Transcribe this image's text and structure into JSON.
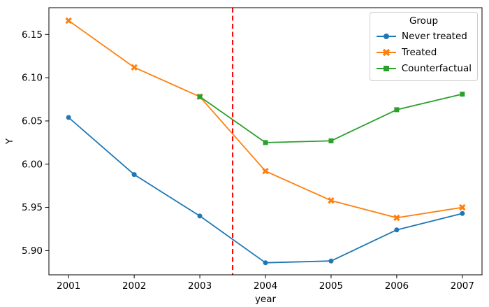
{
  "chart_data": {
    "type": "line",
    "xlabel": "year",
    "ylabel": "Y",
    "x": [
      2001,
      2002,
      2003,
      2004,
      2005,
      2006,
      2007
    ],
    "series": [
      {
        "name": "Never treated",
        "color": "#1f77b4",
        "marker": "circle",
        "values": [
          6.054,
          5.988,
          5.94,
          5.886,
          5.888,
          5.924,
          5.943
        ]
      },
      {
        "name": "Treated",
        "color": "#ff7f0e",
        "marker": "x",
        "values": [
          6.166,
          6.112,
          6.078,
          5.992,
          5.958,
          5.938,
          5.95
        ]
      },
      {
        "name": "Counterfactual",
        "color": "#2ca02c",
        "marker": "square",
        "values": [
          null,
          null,
          6.078,
          6.025,
          6.027,
          6.063,
          6.081
        ]
      }
    ],
    "vline": {
      "x": 2003.5,
      "color": "#ff0000",
      "style": "dashed"
    },
    "legend": {
      "title": "Group",
      "position": "upper right",
      "entries": [
        "Never treated",
        "Treated",
        "Counterfactual"
      ]
    },
    "xticks": [
      2001,
      2002,
      2003,
      2004,
      2005,
      2006,
      2007
    ],
    "yticks": [
      5.9,
      5.95,
      6.0,
      6.05,
      6.1,
      6.15
    ],
    "xlim": [
      2000.7,
      2007.3
    ],
    "ylim": [
      5.872,
      6.181
    ],
    "grid": false,
    "spine_color": "#000000"
  }
}
